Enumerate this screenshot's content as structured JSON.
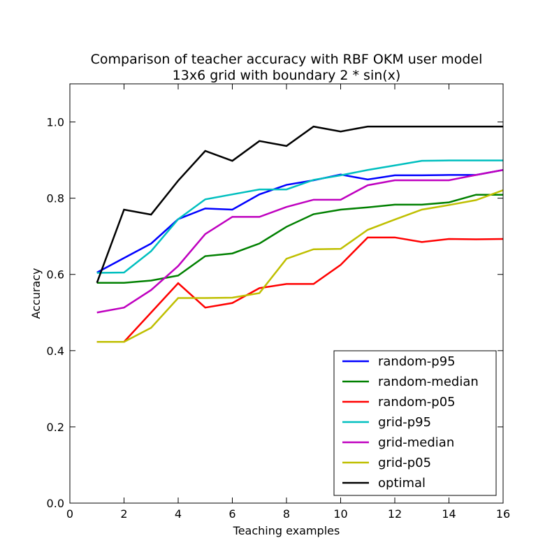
{
  "chart_data": {
    "type": "line",
    "title": "Comparison of teacher accuracy with RBF OKM user model",
    "subtitle": "13x6 grid with boundary 2 * sin(x)",
    "xlabel": "Teaching examples",
    "ylabel": "Accuracy",
    "xlim": [
      0,
      16
    ],
    "ylim": [
      0,
      1.1
    ],
    "xticks": [
      "0",
      "2",
      "4",
      "6",
      "8",
      "10",
      "12",
      "14",
      "16"
    ],
    "yticks": [
      "0.0",
      "0.2",
      "0.4",
      "0.6",
      "0.8",
      "1.0"
    ],
    "grid": false,
    "legend_position": "bottom-right",
    "x": [
      1,
      2,
      3,
      4,
      5,
      6,
      7,
      8,
      9,
      10,
      11,
      12,
      13,
      14,
      15,
      16
    ],
    "series": [
      {
        "name": "random-p95",
        "color": "#0000ff",
        "values": [
          0.605,
          0.643,
          0.681,
          0.745,
          0.773,
          0.77,
          0.81,
          0.835,
          0.847,
          0.862,
          0.849,
          0.86,
          0.86,
          0.861,
          0.861,
          0.874
        ]
      },
      {
        "name": "random-median",
        "color": "#008000",
        "values": [
          0.578,
          0.578,
          0.584,
          0.597,
          0.648,
          0.655,
          0.681,
          0.725,
          0.758,
          0.77,
          0.776,
          0.783,
          0.783,
          0.789,
          0.809,
          0.809
        ]
      },
      {
        "name": "random-p05",
        "color": "#ff0000",
        "values": [
          0.423,
          0.423,
          0.5,
          0.577,
          0.513,
          0.525,
          0.564,
          0.575,
          0.575,
          0.625,
          0.697,
          0.697,
          0.685,
          0.693,
          0.692,
          0.693
        ]
      },
      {
        "name": "grid-p95",
        "color": "#00bfbf",
        "values": [
          0.604,
          0.605,
          0.661,
          0.745,
          0.797,
          0.81,
          0.823,
          0.823,
          0.848,
          0.86,
          0.874,
          0.886,
          0.898,
          0.899,
          0.899,
          0.899
        ]
      },
      {
        "name": "grid-median",
        "color": "#bf00bf",
        "values": [
          0.5,
          0.513,
          0.559,
          0.622,
          0.706,
          0.751,
          0.751,
          0.777,
          0.796,
          0.796,
          0.834,
          0.847,
          0.847,
          0.847,
          0.861,
          0.874
        ]
      },
      {
        "name": "grid-p05",
        "color": "#bfbf00",
        "values": [
          0.423,
          0.423,
          0.46,
          0.538,
          0.538,
          0.539,
          0.551,
          0.641,
          0.666,
          0.667,
          0.717,
          0.744,
          0.77,
          0.782,
          0.795,
          0.821
        ]
      },
      {
        "name": "optimal",
        "color": "#000000",
        "values": [
          0.578,
          0.77,
          0.757,
          0.846,
          0.924,
          0.898,
          0.95,
          0.937,
          0.988,
          0.975,
          0.988,
          0.988,
          0.988,
          0.988,
          0.988,
          0.988
        ]
      }
    ]
  }
}
